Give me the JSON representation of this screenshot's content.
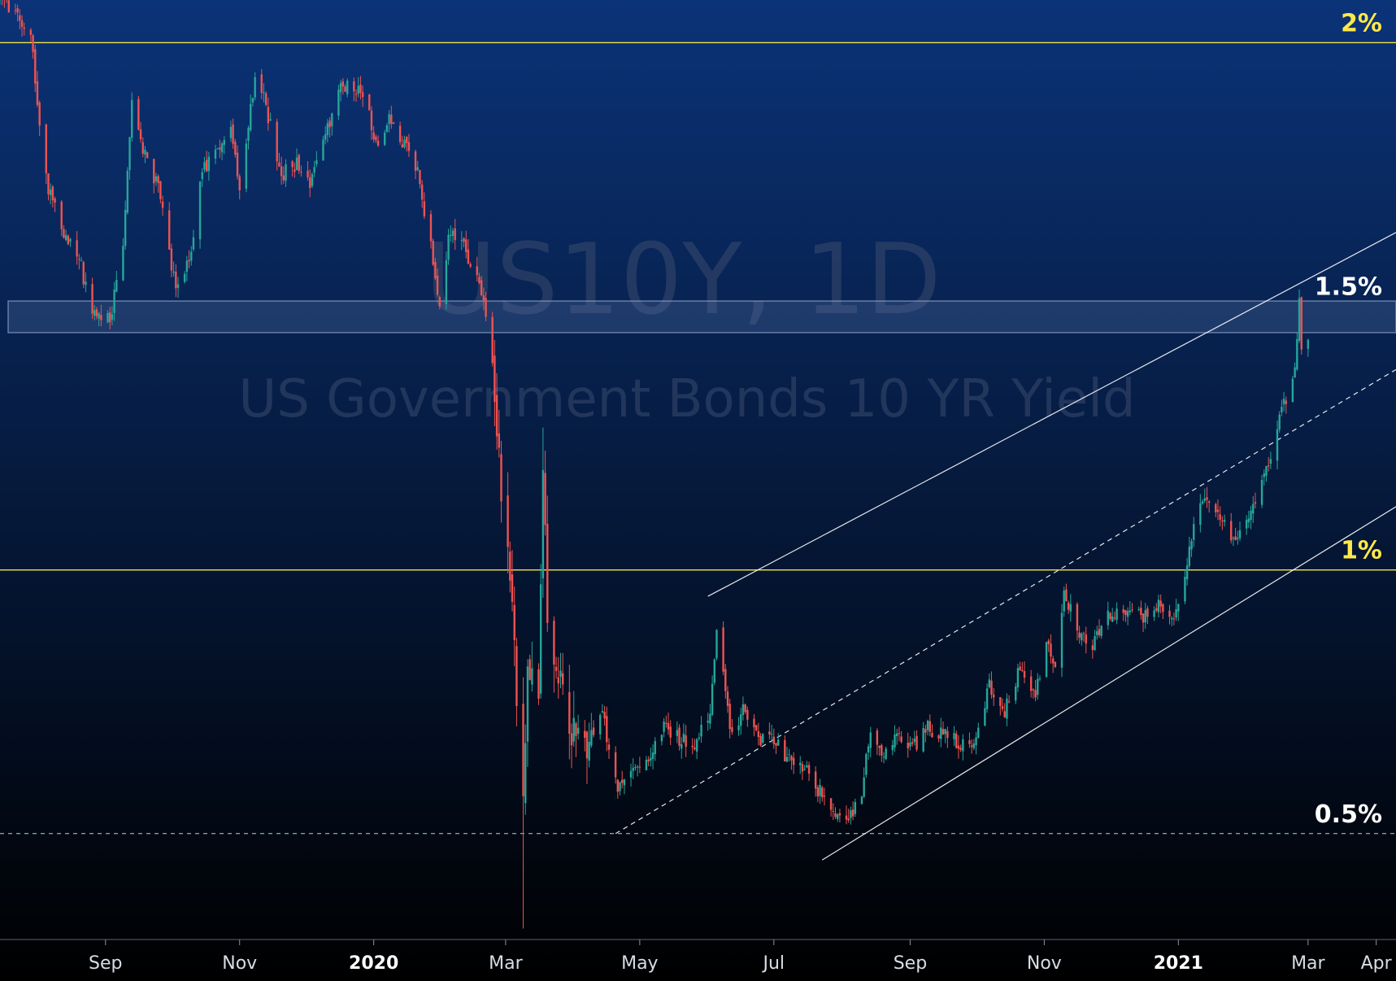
{
  "watermark": {
    "symbol": "US10Y, 1D",
    "name": "US Government Bonds 10 YR Yield"
  },
  "colors": {
    "background_top": "#0b3378",
    "background_bottom": "#000000",
    "up_candle": "#26a69a",
    "down_candle": "#ef5350",
    "level_line_yellow": "#f5e642",
    "level_label_yellow": "#ffe94a",
    "level_label_white": "#ffffff",
    "channel_line": "#ffffff",
    "support_zone": "#5b7ab0"
  },
  "chart_data": {
    "type": "candlestick",
    "symbol": "US10Y",
    "timeframe": "1D",
    "y_unit": "%",
    "ylim": [
      0.33,
      2.05
    ],
    "x_range": [
      "2019-07-15",
      "2021-04-10"
    ],
    "x_ticks": [
      {
        "date": "2019-09-01",
        "label": "Sep",
        "year": false
      },
      {
        "date": "2019-11-01",
        "label": "Nov",
        "year": false
      },
      {
        "date": "2020-01-01",
        "label": "2020",
        "year": true
      },
      {
        "date": "2020-03-01",
        "label": "Mar",
        "year": false
      },
      {
        "date": "2020-05-01",
        "label": "May",
        "year": false
      },
      {
        "date": "2020-07-01",
        "label": "Jul",
        "year": false
      },
      {
        "date": "2020-09-01",
        "label": "Sep",
        "year": false
      },
      {
        "date": "2020-11-01",
        "label": "Nov",
        "year": false
      },
      {
        "date": "2021-01-01",
        "label": "2021",
        "year": true
      },
      {
        "date": "2021-03-01",
        "label": "Mar",
        "year": false
      },
      {
        "date": "2021-04-01",
        "label": "Apr",
        "year": false
      }
    ],
    "levels": [
      {
        "value": 2.0,
        "label": "2%",
        "style": "solid",
        "color": "yellow"
      },
      {
        "value": 1.5,
        "label": "1.5%",
        "style": "zone",
        "zone": [
          1.45,
          1.51
        ],
        "color": "white"
      },
      {
        "value": 1.0,
        "label": "1%",
        "style": "solid",
        "color": "yellow"
      },
      {
        "value": 0.5,
        "label": "0.5%",
        "style": "dashed",
        "color": "white"
      }
    ],
    "channel": {
      "upper": {
        "from": {
          "date": "2020-06-01",
          "value": 0.95
        },
        "to": {
          "date": "2021-04-10",
          "value": 1.64
        },
        "style": "solid"
      },
      "middle": {
        "from": {
          "date": "2020-04-20",
          "value": 0.5
        },
        "to": {
          "date": "2021-04-10",
          "value": 1.38
        },
        "style": "dashed"
      },
      "lower": {
        "from": {
          "date": "2020-07-23",
          "value": 0.45
        },
        "to": {
          "date": "2021-04-10",
          "value": 1.12
        },
        "style": "solid"
      }
    },
    "close_path": [
      [
        "2019-07-15",
        2.08
      ],
      [
        "2019-07-22",
        2.05
      ],
      [
        "2019-07-29",
        2.02
      ],
      [
        "2019-08-01",
        1.88
      ],
      [
        "2019-08-06",
        1.72
      ],
      [
        "2019-08-12",
        1.65
      ],
      [
        "2019-08-19",
        1.6
      ],
      [
        "2019-08-26",
        1.5
      ],
      [
        "2019-09-03",
        1.47
      ],
      [
        "2019-09-09",
        1.62
      ],
      [
        "2019-09-13",
        1.9
      ],
      [
        "2019-09-18",
        1.8
      ],
      [
        "2019-09-25",
        1.72
      ],
      [
        "2019-10-03",
        1.53
      ],
      [
        "2019-10-09",
        1.58
      ],
      [
        "2019-10-15",
        1.75
      ],
      [
        "2019-10-21",
        1.8
      ],
      [
        "2019-10-28",
        1.84
      ],
      [
        "2019-11-01",
        1.72
      ],
      [
        "2019-11-08",
        1.94
      ],
      [
        "2019-11-13",
        1.88
      ],
      [
        "2019-11-20",
        1.75
      ],
      [
        "2019-11-27",
        1.77
      ],
      [
        "2019-12-03",
        1.73
      ],
      [
        "2019-12-09",
        1.82
      ],
      [
        "2019-12-18",
        1.92
      ],
      [
        "2019-12-27",
        1.9
      ],
      [
        "2020-01-03",
        1.8
      ],
      [
        "2020-01-08",
        1.87
      ],
      [
        "2020-01-14",
        1.81
      ],
      [
        "2020-01-21",
        1.76
      ],
      [
        "2020-01-27",
        1.61
      ],
      [
        "2020-01-31",
        1.51
      ],
      [
        "2020-02-05",
        1.65
      ],
      [
        "2020-02-12",
        1.6
      ],
      [
        "2020-02-20",
        1.52
      ],
      [
        "2020-02-24",
        1.38
      ],
      [
        "2020-02-28",
        1.15
      ],
      [
        "2020-03-03",
        1.0
      ],
      [
        "2020-03-06",
        0.74
      ],
      [
        "2020-03-09",
        0.54
      ],
      [
        "2020-03-11",
        0.82
      ],
      [
        "2020-03-16",
        0.73
      ],
      [
        "2020-03-18",
        1.18
      ],
      [
        "2020-03-20",
        0.92
      ],
      [
        "2020-03-24",
        0.82
      ],
      [
        "2020-03-30",
        0.7
      ],
      [
        "2020-04-06",
        0.67
      ],
      [
        "2020-04-14",
        0.73
      ],
      [
        "2020-04-21",
        0.58
      ],
      [
        "2020-04-28",
        0.62
      ],
      [
        "2020-05-05",
        0.65
      ],
      [
        "2020-05-12",
        0.7
      ],
      [
        "2020-05-19",
        0.68
      ],
      [
        "2020-05-26",
        0.67
      ],
      [
        "2020-06-02",
        0.72
      ],
      [
        "2020-06-05",
        0.9
      ],
      [
        "2020-06-11",
        0.7
      ],
      [
        "2020-06-17",
        0.73
      ],
      [
        "2020-06-24",
        0.68
      ],
      [
        "2020-07-01",
        0.68
      ],
      [
        "2020-07-08",
        0.64
      ],
      [
        "2020-07-15",
        0.62
      ],
      [
        "2020-07-22",
        0.58
      ],
      [
        "2020-07-28",
        0.53
      ],
      [
        "2020-08-04",
        0.52
      ],
      [
        "2020-08-10",
        0.58
      ],
      [
        "2020-08-14",
        0.7
      ],
      [
        "2020-08-20",
        0.65
      ],
      [
        "2020-08-26",
        0.69
      ],
      [
        "2020-09-02",
        0.66
      ],
      [
        "2020-09-09",
        0.7
      ],
      [
        "2020-09-16",
        0.69
      ],
      [
        "2020-09-23",
        0.67
      ],
      [
        "2020-09-30",
        0.68
      ],
      [
        "2020-10-07",
        0.78
      ],
      [
        "2020-10-14",
        0.73
      ],
      [
        "2020-10-21",
        0.81
      ],
      [
        "2020-10-28",
        0.77
      ],
      [
        "2020-11-02",
        0.86
      ],
      [
        "2020-11-06",
        0.82
      ],
      [
        "2020-11-10",
        0.96
      ],
      [
        "2020-11-17",
        0.88
      ],
      [
        "2020-11-24",
        0.86
      ],
      [
        "2020-12-01",
        0.92
      ],
      [
        "2020-12-08",
        0.92
      ],
      [
        "2020-12-15",
        0.91
      ],
      [
        "2020-12-22",
        0.93
      ],
      [
        "2020-12-31",
        0.92
      ],
      [
        "2021-01-06",
        1.04
      ],
      [
        "2021-01-12",
        1.14
      ],
      [
        "2021-01-18",
        1.1
      ],
      [
        "2021-01-26",
        1.06
      ],
      [
        "2021-02-01",
        1.08
      ],
      [
        "2021-02-08",
        1.17
      ],
      [
        "2021-02-12",
        1.2
      ],
      [
        "2021-02-17",
        1.3
      ],
      [
        "2021-02-23",
        1.37
      ],
      [
        "2021-02-25",
        1.52
      ],
      [
        "2021-02-26",
        1.42
      ],
      [
        "2021-03-01",
        1.43
      ]
    ]
  }
}
